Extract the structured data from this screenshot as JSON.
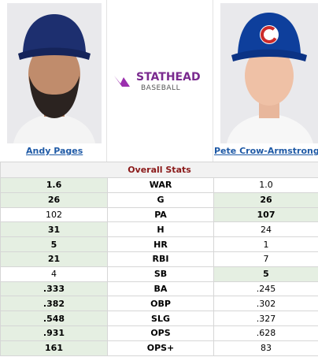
{
  "players": {
    "left": "Andy Pages",
    "right": "Pete Crow-Armstrong"
  },
  "logo": {
    "main": "STATHEAD",
    "sub": "BASEBALL"
  },
  "table": {
    "title": "Overall Stats",
    "rows": [
      [
        "1.6",
        "WAR",
        "1.0",
        "left"
      ],
      [
        "26",
        "G",
        "26",
        "both"
      ],
      [
        "102",
        "PA",
        "107",
        "right"
      ],
      [
        "31",
        "H",
        "24",
        "left"
      ],
      [
        "5",
        "HR",
        "1",
        "left"
      ],
      [
        "21",
        "RBI",
        "7",
        "left"
      ],
      [
        "4",
        "SB",
        "5",
        "right"
      ],
      [
        ".333",
        "BA",
        ".245",
        "left"
      ],
      [
        ".382",
        "OBP",
        ".302",
        "left"
      ],
      [
        ".548",
        "SLG",
        ".327",
        "left"
      ],
      [
        ".931",
        "OPS",
        ".628",
        "left"
      ],
      [
        "161",
        "OPS+",
        "83",
        "left"
      ]
    ]
  }
}
